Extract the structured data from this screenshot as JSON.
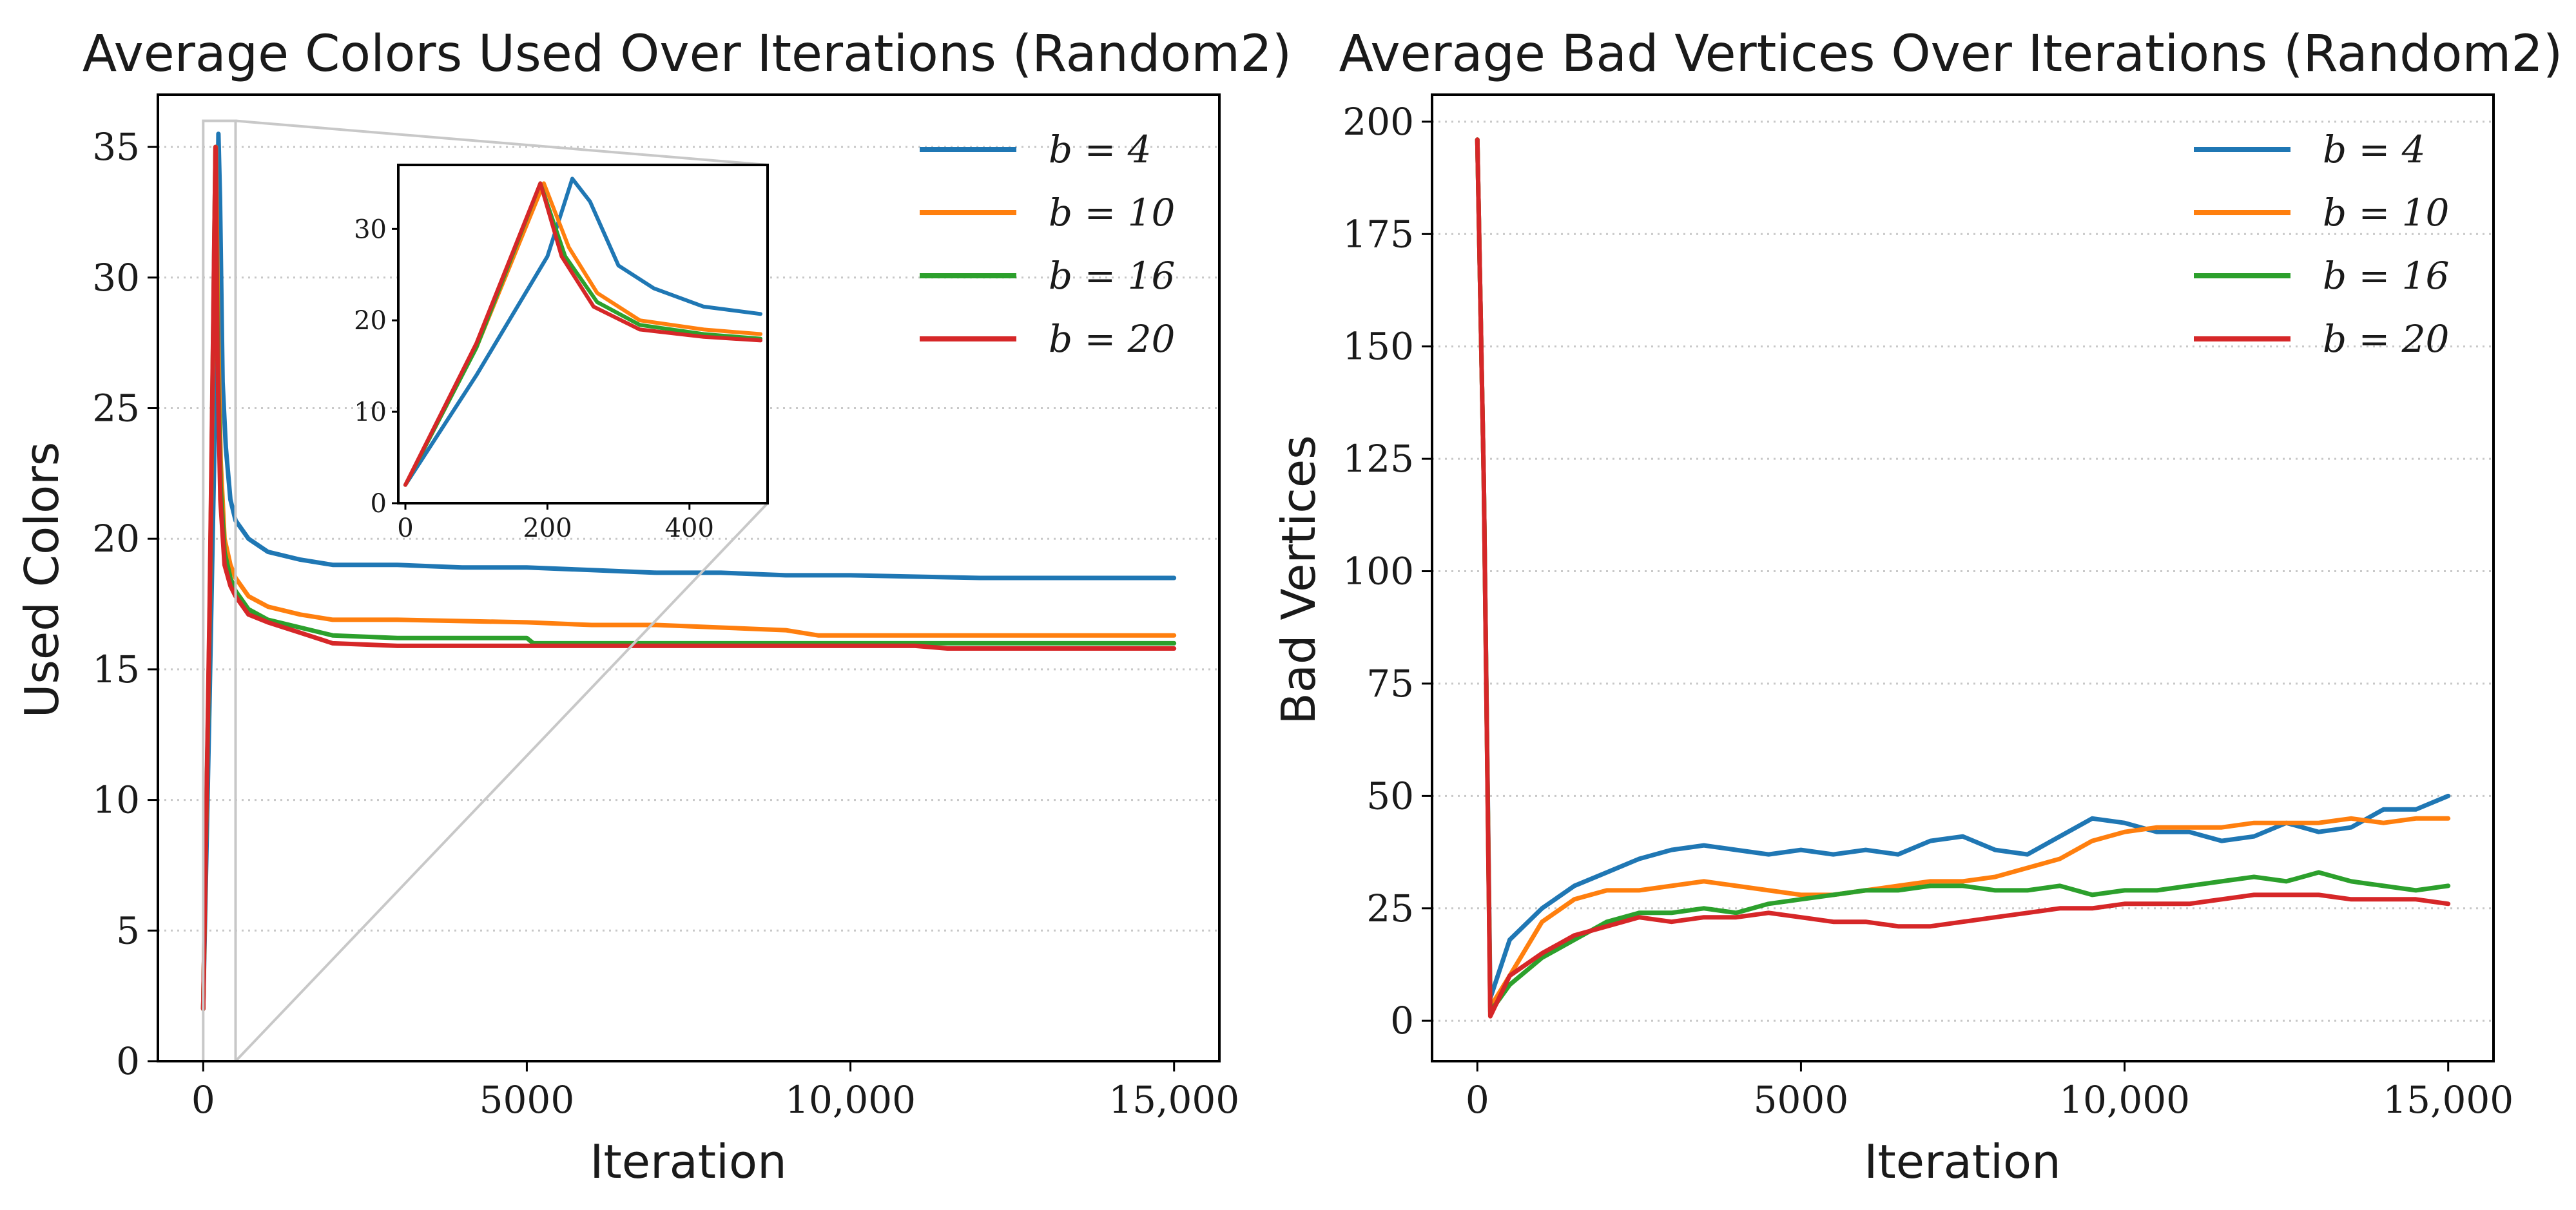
{
  "figure": {
    "legend_prefix": "b = "
  },
  "chart_data": [
    {
      "type": "line",
      "title": "Average Colors Used Over Iterations (Random2)",
      "xlabel": "Iteration",
      "ylabel": "Used Colors",
      "xlim": [
        -700,
        15700
      ],
      "ylim": [
        0,
        37
      ],
      "xticks": [
        0,
        5000,
        10000,
        15000
      ],
      "xtick_labels": [
        "0",
        "5000",
        "10,000",
        "15,000"
      ],
      "yticks": [
        0,
        5,
        10,
        15,
        20,
        25,
        30,
        35
      ],
      "ytick_labels": [
        "0",
        "5",
        "10",
        "15",
        "20",
        "25",
        "30",
        "35"
      ],
      "grid": "y-dotted",
      "legend_position": "top-right",
      "series": [
        {
          "name": "4",
          "color": "#1f77b4",
          "points": [
            [
              0,
              2
            ],
            [
              100,
              14
            ],
            [
              200,
              27
            ],
            [
              235,
              35.5
            ],
            [
              260,
              33
            ],
            [
              300,
              26
            ],
            [
              350,
              23.5
            ],
            [
              420,
              21.5
            ],
            [
              500,
              20.7
            ],
            [
              700,
              20
            ],
            [
              1000,
              19.5
            ],
            [
              1500,
              19.2
            ],
            [
              2000,
              19.0
            ],
            [
              3000,
              19.0
            ],
            [
              4000,
              18.9
            ],
            [
              5000,
              18.9
            ],
            [
              6000,
              18.8
            ],
            [
              7000,
              18.7
            ],
            [
              8000,
              18.7
            ],
            [
              9000,
              18.6
            ],
            [
              10000,
              18.6
            ],
            [
              12000,
              18.5
            ],
            [
              15000,
              18.5
            ]
          ]
        },
        {
          "name": "10",
          "color": "#ff7f0e",
          "points": [
            [
              0,
              2
            ],
            [
              100,
              17
            ],
            [
              195,
              35
            ],
            [
              230,
              28
            ],
            [
              270,
              23
            ],
            [
              330,
              20
            ],
            [
              420,
              19
            ],
            [
              500,
              18.5
            ],
            [
              700,
              17.8
            ],
            [
              1000,
              17.4
            ],
            [
              1500,
              17.1
            ],
            [
              2000,
              16.9
            ],
            [
              3000,
              16.9
            ],
            [
              5000,
              16.8
            ],
            [
              6000,
              16.7
            ],
            [
              7000,
              16.7
            ],
            [
              8000,
              16.6
            ],
            [
              9000,
              16.5
            ],
            [
              9500,
              16.3
            ],
            [
              12000,
              16.3
            ],
            [
              15000,
              16.3
            ]
          ]
        },
        {
          "name": "16",
          "color": "#2ca02c",
          "points": [
            [
              0,
              2
            ],
            [
              100,
              17
            ],
            [
              190,
              35
            ],
            [
              225,
              27
            ],
            [
              270,
              22
            ],
            [
              330,
              19.5
            ],
            [
              420,
              18.5
            ],
            [
              500,
              18
            ],
            [
              700,
              17.3
            ],
            [
              1000,
              16.9
            ],
            [
              1500,
              16.6
            ],
            [
              2000,
              16.3
            ],
            [
              3000,
              16.2
            ],
            [
              5000,
              16.2
            ],
            [
              5100,
              16.0
            ],
            [
              9000,
              16.0
            ],
            [
              11000,
              16.0
            ],
            [
              15000,
              16.0
            ]
          ]
        },
        {
          "name": "20",
          "color": "#d62728",
          "points": [
            [
              0,
              2
            ],
            [
              100,
              17.5
            ],
            [
              190,
              35
            ],
            [
              220,
              27
            ],
            [
              265,
              21.5
            ],
            [
              330,
              19
            ],
            [
              420,
              18.2
            ],
            [
              500,
              17.8
            ],
            [
              700,
              17.1
            ],
            [
              1000,
              16.8
            ],
            [
              1500,
              16.4
            ],
            [
              2000,
              16.0
            ],
            [
              3000,
              15.9
            ],
            [
              5000,
              15.9
            ],
            [
              8000,
              15.9
            ],
            [
              11000,
              15.9
            ],
            [
              11500,
              15.8
            ],
            [
              15000,
              15.8
            ]
          ]
        }
      ],
      "inset": {
        "xlim": [
          -10,
          510
        ],
        "ylim": [
          0,
          37
        ],
        "xticks": [
          0,
          200,
          400
        ],
        "xtick_labels": [
          "0",
          "200",
          "400"
        ],
        "yticks": [
          0,
          10,
          20,
          30
        ],
        "ytick_labels": [
          "0",
          "10",
          "20",
          "30"
        ],
        "zoom_region": {
          "x": [
            0,
            500
          ],
          "y": [
            0,
            36
          ]
        }
      }
    },
    {
      "type": "line",
      "title": "Average Bad Vertices Over Iterations (Random2)",
      "xlabel": "Iteration",
      "ylabel": "Bad Vertices",
      "xlim": [
        -700,
        15700
      ],
      "ylim": [
        -9,
        206
      ],
      "xticks": [
        0,
        5000,
        10000,
        15000
      ],
      "xtick_labels": [
        "0",
        "5000",
        "10,000",
        "15,000"
      ],
      "yticks": [
        0,
        25,
        50,
        75,
        100,
        125,
        150,
        175,
        200
      ],
      "ytick_labels": [
        "0",
        "25",
        "50",
        "75",
        "100",
        "125",
        "150",
        "175",
        "200"
      ],
      "grid": "y-dotted",
      "legend_position": "top-right",
      "series": [
        {
          "name": "4",
          "color": "#1f77b4",
          "points": [
            [
              0,
              196
            ],
            [
              100,
              120
            ],
            [
              200,
              5
            ],
            [
              500,
              18
            ],
            [
              1000,
              25
            ],
            [
              1500,
              30
            ],
            [
              2000,
              33
            ],
            [
              2500,
              36
            ],
            [
              3000,
              38
            ],
            [
              3500,
              39
            ],
            [
              4000,
              38
            ],
            [
              4500,
              37
            ],
            [
              5000,
              38
            ],
            [
              5500,
              37
            ],
            [
              6000,
              38
            ],
            [
              6500,
              37
            ],
            [
              7000,
              40
            ],
            [
              7500,
              41
            ],
            [
              8000,
              38
            ],
            [
              8500,
              37
            ],
            [
              9000,
              41
            ],
            [
              9500,
              45
            ],
            [
              10000,
              44
            ],
            [
              10500,
              42
            ],
            [
              11000,
              42
            ],
            [
              11500,
              40
            ],
            [
              12000,
              41
            ],
            [
              12500,
              44
            ],
            [
              13000,
              42
            ],
            [
              13500,
              43
            ],
            [
              14000,
              47
            ],
            [
              14500,
              47
            ],
            [
              15000,
              50
            ]
          ]
        },
        {
          "name": "10",
          "color": "#ff7f0e",
          "points": [
            [
              0,
              196
            ],
            [
              100,
              120
            ],
            [
              200,
              3
            ],
            [
              500,
              10
            ],
            [
              1000,
              22
            ],
            [
              1500,
              27
            ],
            [
              2000,
              29
            ],
            [
              2500,
              29
            ],
            [
              3000,
              30
            ],
            [
              3500,
              31
            ],
            [
              4000,
              30
            ],
            [
              4500,
              29
            ],
            [
              5000,
              28
            ],
            [
              5500,
              28
            ],
            [
              6000,
              29
            ],
            [
              6500,
              30
            ],
            [
              7000,
              31
            ],
            [
              7500,
              31
            ],
            [
              8000,
              32
            ],
            [
              8500,
              34
            ],
            [
              9000,
              36
            ],
            [
              9500,
              40
            ],
            [
              10000,
              42
            ],
            [
              10500,
              43
            ],
            [
              11000,
              43
            ],
            [
              11500,
              43
            ],
            [
              12000,
              44
            ],
            [
              12500,
              44
            ],
            [
              13000,
              44
            ],
            [
              13500,
              45
            ],
            [
              14000,
              44
            ],
            [
              14500,
              45
            ],
            [
              15000,
              45
            ]
          ]
        },
        {
          "name": "16",
          "color": "#2ca02c",
          "points": [
            [
              0,
              196
            ],
            [
              100,
              120
            ],
            [
              200,
              2
            ],
            [
              500,
              8
            ],
            [
              1000,
              14
            ],
            [
              1500,
              18
            ],
            [
              2000,
              22
            ],
            [
              2500,
              24
            ],
            [
              3000,
              24
            ],
            [
              3500,
              25
            ],
            [
              4000,
              24
            ],
            [
              4500,
              26
            ],
            [
              5000,
              27
            ],
            [
              5500,
              28
            ],
            [
              6000,
              29
            ],
            [
              6500,
              29
            ],
            [
              7000,
              30
            ],
            [
              7500,
              30
            ],
            [
              8000,
              29
            ],
            [
              8500,
              29
            ],
            [
              9000,
              30
            ],
            [
              9500,
              28
            ],
            [
              10000,
              29
            ],
            [
              10500,
              29
            ],
            [
              11000,
              30
            ],
            [
              11500,
              31
            ],
            [
              12000,
              32
            ],
            [
              12500,
              31
            ],
            [
              13000,
              33
            ],
            [
              13500,
              31
            ],
            [
              14000,
              30
            ],
            [
              14500,
              29
            ],
            [
              15000,
              30
            ]
          ]
        },
        {
          "name": "20",
          "color": "#d62728",
          "points": [
            [
              0,
              196
            ],
            [
              100,
              120
            ],
            [
              200,
              1
            ],
            [
              500,
              10
            ],
            [
              1000,
              15
            ],
            [
              1500,
              19
            ],
            [
              2000,
              21
            ],
            [
              2500,
              23
            ],
            [
              3000,
              22
            ],
            [
              3500,
              23
            ],
            [
              4000,
              23
            ],
            [
              4500,
              24
            ],
            [
              5000,
              23
            ],
            [
              5500,
              22
            ],
            [
              6000,
              22
            ],
            [
              6500,
              21
            ],
            [
              7000,
              21
            ],
            [
              7500,
              22
            ],
            [
              8000,
              23
            ],
            [
              8500,
              24
            ],
            [
              9000,
              25
            ],
            [
              9500,
              25
            ],
            [
              10000,
              26
            ],
            [
              10500,
              26
            ],
            [
              11000,
              26
            ],
            [
              11500,
              27
            ],
            [
              12000,
              28
            ],
            [
              12500,
              28
            ],
            [
              13000,
              28
            ],
            [
              13500,
              27
            ],
            [
              14000,
              27
            ],
            [
              14500,
              27
            ],
            [
              15000,
              26
            ]
          ]
        }
      ]
    }
  ]
}
